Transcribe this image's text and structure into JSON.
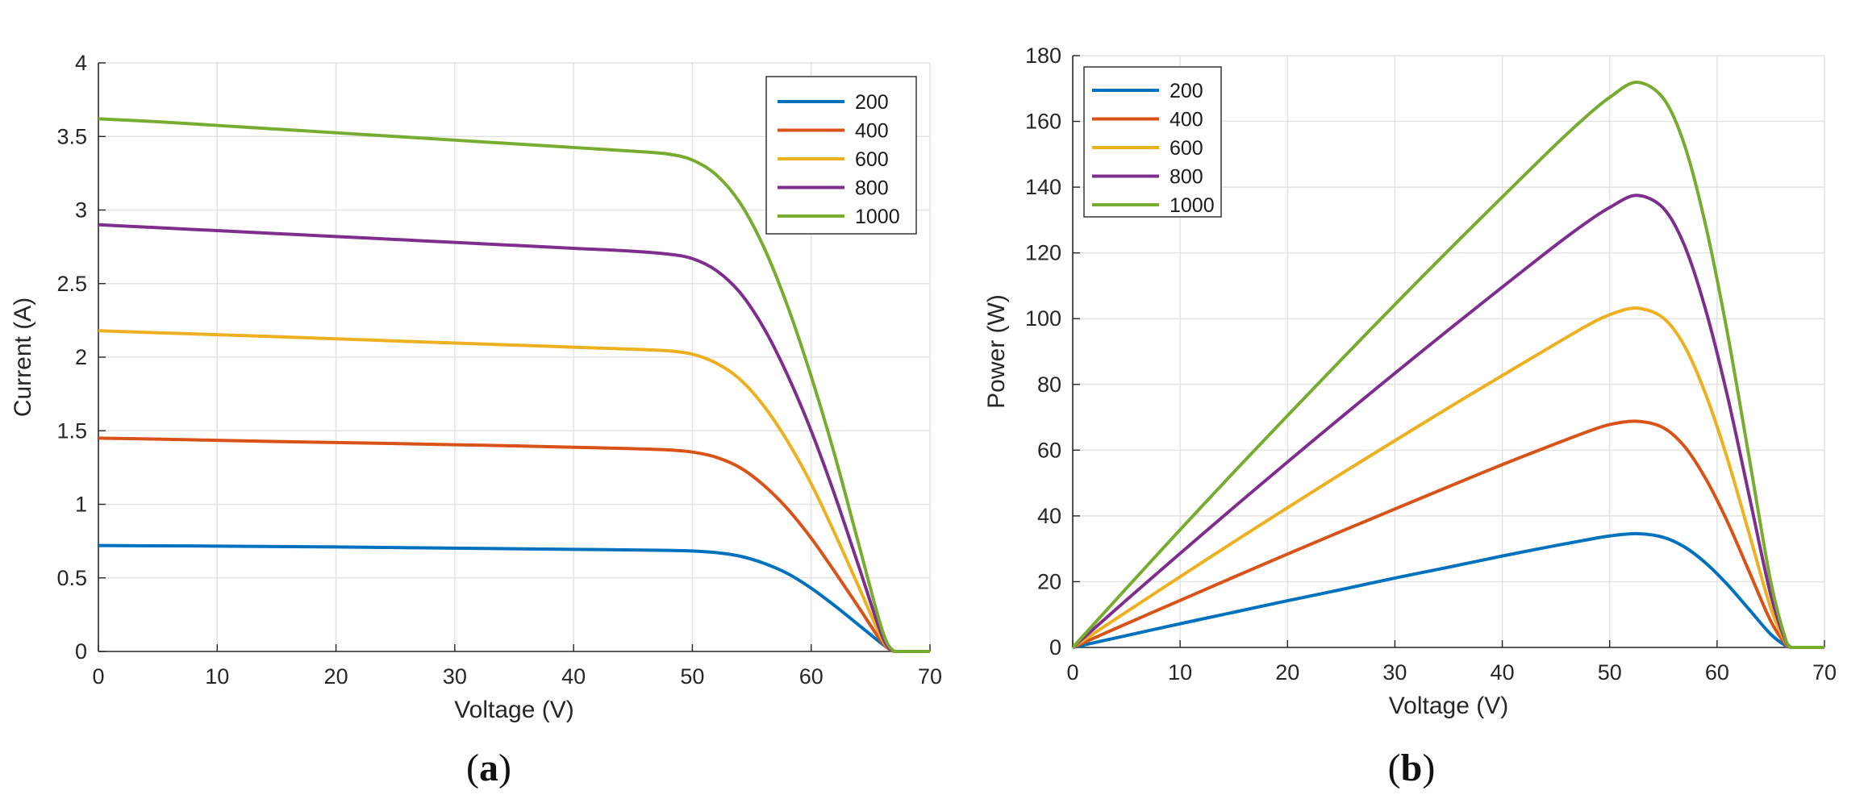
{
  "chart_data": [
    {
      "panel": "a",
      "caption_open": "(",
      "caption_letter": "a",
      "caption_close": ")",
      "type": "line",
      "title": "",
      "xlabel": "Voltage (V)",
      "ylabel": "Current (A)",
      "xlim": [
        0,
        70
      ],
      "ylim": [
        0,
        4
      ],
      "xticks": [
        0,
        10,
        20,
        30,
        40,
        50,
        60,
        70
      ],
      "xtick_labels": [
        "0",
        "10",
        "20",
        "30",
        "40",
        "50",
        "60",
        "70"
      ],
      "yticks": [
        0,
        0.5,
        1,
        1.5,
        2,
        2.5,
        3,
        3.5,
        4
      ],
      "ytick_labels": [
        "0",
        "0.5",
        "1",
        "1.5",
        "2",
        "2.5",
        "3",
        "3.5",
        "4"
      ],
      "grid": true,
      "legend_position": "top-right",
      "x": [
        0,
        5,
        10,
        15,
        20,
        25,
        30,
        35,
        40,
        45,
        48,
        50,
        52,
        54,
        56,
        58,
        60,
        62,
        64,
        66,
        67,
        68,
        70
      ],
      "series": [
        {
          "name": "200",
          "color": "#0072BD",
          "values": [
            0.72,
            0.718,
            0.716,
            0.713,
            0.71,
            0.706,
            0.702,
            0.698,
            0.694,
            0.69,
            0.687,
            0.683,
            0.672,
            0.648,
            0.6,
            0.53,
            0.43,
            0.31,
            0.18,
            0.05,
            0,
            0,
            0
          ]
        },
        {
          "name": "400",
          "color": "#D95319",
          "values": [
            1.45,
            1.443,
            1.435,
            1.427,
            1.42,
            1.413,
            1.405,
            1.397,
            1.388,
            1.378,
            1.37,
            1.355,
            1.32,
            1.25,
            1.13,
            0.97,
            0.77,
            0.54,
            0.3,
            0.06,
            0,
            0,
            0
          ]
        },
        {
          "name": "600",
          "color": "#EDB120",
          "values": [
            2.18,
            2.166,
            2.153,
            2.139,
            2.125,
            2.11,
            2.096,
            2.082,
            2.068,
            2.054,
            2.043,
            2.02,
            1.96,
            1.85,
            1.67,
            1.43,
            1.14,
            0.8,
            0.44,
            0.08,
            0,
            0,
            0
          ]
        },
        {
          "name": "800",
          "color": "#7E2F8E",
          "values": [
            2.9,
            2.88,
            2.86,
            2.84,
            2.82,
            2.8,
            2.78,
            2.76,
            2.74,
            2.72,
            2.7,
            2.67,
            2.59,
            2.44,
            2.2,
            1.88,
            1.5,
            1.06,
            0.58,
            0.1,
            0,
            0,
            0
          ]
        },
        {
          "name": "1000",
          "color": "#77AC30",
          "values": [
            3.62,
            3.6,
            3.575,
            3.55,
            3.525,
            3.5,
            3.475,
            3.45,
            3.425,
            3.4,
            3.38,
            3.34,
            3.24,
            3.05,
            2.75,
            2.35,
            1.87,
            1.33,
            0.73,
            0.14,
            0,
            0,
            0
          ]
        }
      ]
    },
    {
      "panel": "b",
      "caption_open": "(",
      "caption_letter": "b",
      "caption_close": ")",
      "type": "line",
      "title": "",
      "xlabel": "Voltage (V)",
      "ylabel": "Power (W)",
      "xlim": [
        0,
        70
      ],
      "ylim": [
        0,
        180
      ],
      "xticks": [
        0,
        10,
        20,
        30,
        40,
        50,
        60,
        70
      ],
      "xtick_labels": [
        "0",
        "10",
        "20",
        "30",
        "40",
        "50",
        "60",
        "70"
      ],
      "yticks": [
        0,
        20,
        40,
        60,
        80,
        100,
        120,
        140,
        160,
        180
      ],
      "ytick_labels": [
        "0",
        "20",
        "40",
        "60",
        "80",
        "100",
        "120",
        "140",
        "160",
        "180"
      ],
      "grid": true,
      "legend_position": "top-left",
      "x": [
        0,
        5,
        10,
        15,
        20,
        25,
        30,
        35,
        40,
        45,
        48,
        50,
        52.5,
        55,
        57,
        59,
        61,
        63,
        65,
        66.5,
        67,
        68,
        70
      ],
      "series": [
        {
          "name": "200",
          "color": "#0072BD",
          "values": [
            0,
            3.6,
            7.2,
            10.7,
            14.2,
            17.6,
            21.1,
            24.4,
            27.8,
            31,
            32.8,
            33.9,
            34.6,
            33.5,
            30.5,
            25.5,
            19,
            11.5,
            4,
            0.3,
            0,
            0,
            0
          ]
        },
        {
          "name": "400",
          "color": "#D95319",
          "values": [
            0,
            7.2,
            14.3,
            21.4,
            28.4,
            35.3,
            42.1,
            48.9,
            55.6,
            62,
            65.7,
            67.8,
            68.8,
            66.8,
            61,
            51,
            38,
            23,
            8,
            0.5,
            0,
            0,
            0
          ]
        },
        {
          "name": "600",
          "color": "#EDB120",
          "values": [
            0,
            10.8,
            21.5,
            32.1,
            42.5,
            52.8,
            62.9,
            72.9,
            82.7,
            92.4,
            98.1,
            101.2,
            103.2,
            100.2,
            91.5,
            76.5,
            57,
            34.5,
            12,
            0.8,
            0,
            0,
            0
          ]
        },
        {
          "name": "800",
          "color": "#7E2F8E",
          "values": [
            0,
            14.4,
            28.6,
            42.6,
            56.4,
            70,
            83.4,
            96.6,
            109.6,
            122.4,
            129.6,
            133.8,
            137.5,
            133.6,
            122,
            102,
            76,
            46,
            16,
            1,
            0,
            0,
            0
          ]
        },
        {
          "name": "1000",
          "color": "#77AC30",
          "values": [
            0,
            18,
            35.8,
            53.3,
            70.5,
            87.5,
            104.3,
            120.8,
            137,
            153,
            162,
            167.3,
            171.9,
            167,
            152.5,
            127.5,
            95,
            57.5,
            20,
            1.3,
            0,
            0,
            0
          ]
        }
      ]
    }
  ]
}
